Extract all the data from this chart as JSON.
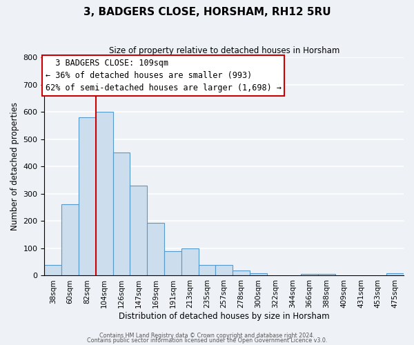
{
  "title": "3, BADGERS CLOSE, HORSHAM, RH12 5RU",
  "subtitle": "Size of property relative to detached houses in Horsham",
  "xlabel": "Distribution of detached houses by size in Horsham",
  "ylabel": "Number of detached properties",
  "bar_labels": [
    "38sqm",
    "60sqm",
    "82sqm",
    "104sqm",
    "126sqm",
    "147sqm",
    "169sqm",
    "191sqm",
    "213sqm",
    "235sqm",
    "257sqm",
    "278sqm",
    "300sqm",
    "322sqm",
    "344sqm",
    "366sqm",
    "388sqm",
    "409sqm",
    "431sqm",
    "453sqm",
    "475sqm"
  ],
  "bar_values": [
    40,
    262,
    580,
    600,
    450,
    330,
    193,
    90,
    100,
    38,
    38,
    18,
    10,
    0,
    0,
    5,
    5,
    0,
    0,
    0,
    8
  ],
  "bar_color": "#ccdded",
  "bar_edge_color": "#5599cc",
  "ylim": [
    0,
    800
  ],
  "yticks": [
    0,
    100,
    200,
    300,
    400,
    500,
    600,
    700,
    800
  ],
  "vline_x_index": 3,
  "vline_color": "#cc0000",
  "annotation_title": "3 BADGERS CLOSE: 109sqm",
  "annotation_line1": "← 36% of detached houses are smaller (993)",
  "annotation_line2": "62% of semi-detached houses are larger (1,698) →",
  "annotation_box_color": "#ffffff",
  "annotation_box_edge": "#cc0000",
  "footer1": "Contains HM Land Registry data © Crown copyright and database right 2024.",
  "footer2": "Contains public sector information licensed under the Open Government Licence v3.0.",
  "background_color": "#eef2f7",
  "plot_background": "#eef2f7",
  "grid_color": "#ffffff"
}
